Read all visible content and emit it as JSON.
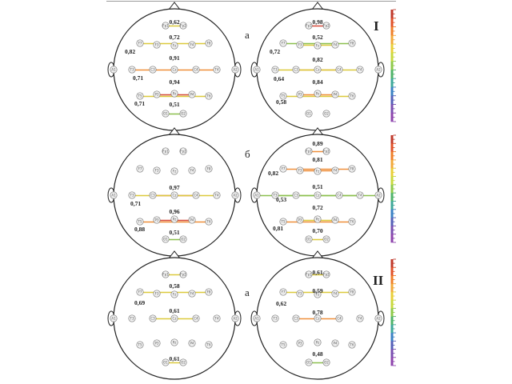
{
  "section_labels": {
    "top": "I",
    "bottom": "II"
  },
  "panel_labels": {
    "a1": "а",
    "b": "б",
    "a2": "а"
  },
  "colors": {
    "scale": [
      "#c0392b",
      "#e0522a",
      "#ef7f2a",
      "#f2a93b",
      "#e8cf3a",
      "#c9d93f",
      "#8fca4a",
      "#4fb36a",
      "#3ea89a",
      "#3b82c4",
      "#5560b8",
      "#7a4fb0",
      "#8e44ad"
    ],
    "very_high": "#d64a3a",
    "high": "#ef8f3a",
    "medium": "#dcc93c",
    "low": "#8cc04e"
  },
  "electrodes": [
    "Fp1",
    "Fp2",
    "F7",
    "F3",
    "Fz",
    "F4",
    "F8",
    "A1",
    "T3",
    "C3",
    "Cz",
    "C4",
    "T4",
    "A2",
    "T5",
    "P3",
    "Pz",
    "P4",
    "T6",
    "O1",
    "O2"
  ],
  "heads": [
    {
      "id": "I-a-left",
      "values": [
        {
          "text": "0,62",
          "from": "Fp1",
          "to": "Fp2",
          "level": "medium"
        },
        {
          "text": "0,72",
          "from": "F7",
          "to": "F8",
          "level": "medium"
        },
        {
          "text": "0,82",
          "from": "",
          "to": "",
          "level": "none"
        },
        {
          "text": "0,91",
          "from": "T3",
          "to": "T4",
          "level": "high"
        },
        {
          "text": "0,71",
          "from": "",
          "to": "",
          "level": "none"
        },
        {
          "text": "0,94",
          "from": "P3",
          "to": "P4",
          "level": "very_high"
        },
        {
          "text": "0,71",
          "from": "T5",
          "to": "T6",
          "level": "medium"
        },
        {
          "text": "0,51",
          "from": "O1",
          "to": "O2",
          "level": "low"
        }
      ]
    },
    {
      "id": "I-a-right",
      "values": [
        {
          "text": "0,98",
          "from": "Fp1",
          "to": "Fp2",
          "level": "very_high"
        },
        {
          "text": "0,52",
          "from": "F7",
          "to": "F8",
          "level": "low"
        },
        {
          "text": "0,72",
          "from": "F3",
          "to": "F4",
          "level": "medium"
        },
        {
          "text": "0,82",
          "from": "C3",
          "to": "C4",
          "level": "high"
        },
        {
          "text": "0,64",
          "from": "T3",
          "to": "T4",
          "level": "medium"
        },
        {
          "text": "0,84",
          "from": "P3",
          "to": "P4",
          "level": "high"
        },
        {
          "text": "0,58",
          "from": "T5",
          "to": "T6",
          "level": "medium"
        }
      ]
    },
    {
      "id": "I-b-left",
      "values": [
        {
          "text": "0,97",
          "from": "C3",
          "to": "C4",
          "level": "very_high"
        },
        {
          "text": "0,71",
          "from": "T3",
          "to": "T4",
          "level": "medium"
        },
        {
          "text": "0,96",
          "from": "P3",
          "to": "P4",
          "level": "very_high"
        },
        {
          "text": "0,88",
          "from": "T5",
          "to": "T6",
          "level": "high"
        },
        {
          "text": "0,51",
          "from": "O1",
          "to": "O2",
          "level": "low"
        }
      ]
    },
    {
      "id": "I-b-right",
      "values": [
        {
          "text": "0,89",
          "from": "Fp1",
          "to": "Fp2",
          "level": "high"
        },
        {
          "text": "0,81",
          "from": "F7",
          "to": "F8",
          "level": "high"
        },
        {
          "text": "0,82",
          "from": "F3",
          "to": "F4",
          "level": "high"
        },
        {
          "text": "0,51",
          "from": "A1",
          "to": "A2",
          "level": "low"
        },
        {
          "text": "0,53",
          "from": "T3",
          "to": "T4",
          "level": "low"
        },
        {
          "text": "0,72",
          "from": "P3",
          "to": "P4",
          "level": "medium"
        },
        {
          "text": "0,81",
          "from": "T5",
          "to": "T6",
          "level": "high"
        },
        {
          "text": "0,70",
          "from": "O1",
          "to": "O2",
          "level": "medium"
        }
      ]
    },
    {
      "id": "II-a-left",
      "values": [
        {
          "text": "0,58",
          "from": "Fp1",
          "to": "Fp2",
          "level": "medium"
        },
        {
          "text": "0,69",
          "from": "F7",
          "to": "F8",
          "level": "medium"
        },
        {
          "text": "0,61",
          "from": "C3",
          "to": "C4",
          "level": "medium"
        },
        {
          "text": "0,61",
          "from": "O1",
          "to": "O2",
          "level": "medium"
        }
      ]
    },
    {
      "id": "II-a-right",
      "values": [
        {
          "text": "0,61",
          "from": "Fp1",
          "to": "Fp2",
          "level": "medium"
        },
        {
          "text": "0,59",
          "from": "F7",
          "to": "F8",
          "level": "medium"
        },
        {
          "text": "0,62",
          "from": "",
          "to": "",
          "level": "none"
        },
        {
          "text": "0,78",
          "from": "C3",
          "to": "C4",
          "level": "high"
        },
        {
          "text": "0,48",
          "from": "O1",
          "to": "O2",
          "level": "low"
        }
      ]
    }
  ]
}
